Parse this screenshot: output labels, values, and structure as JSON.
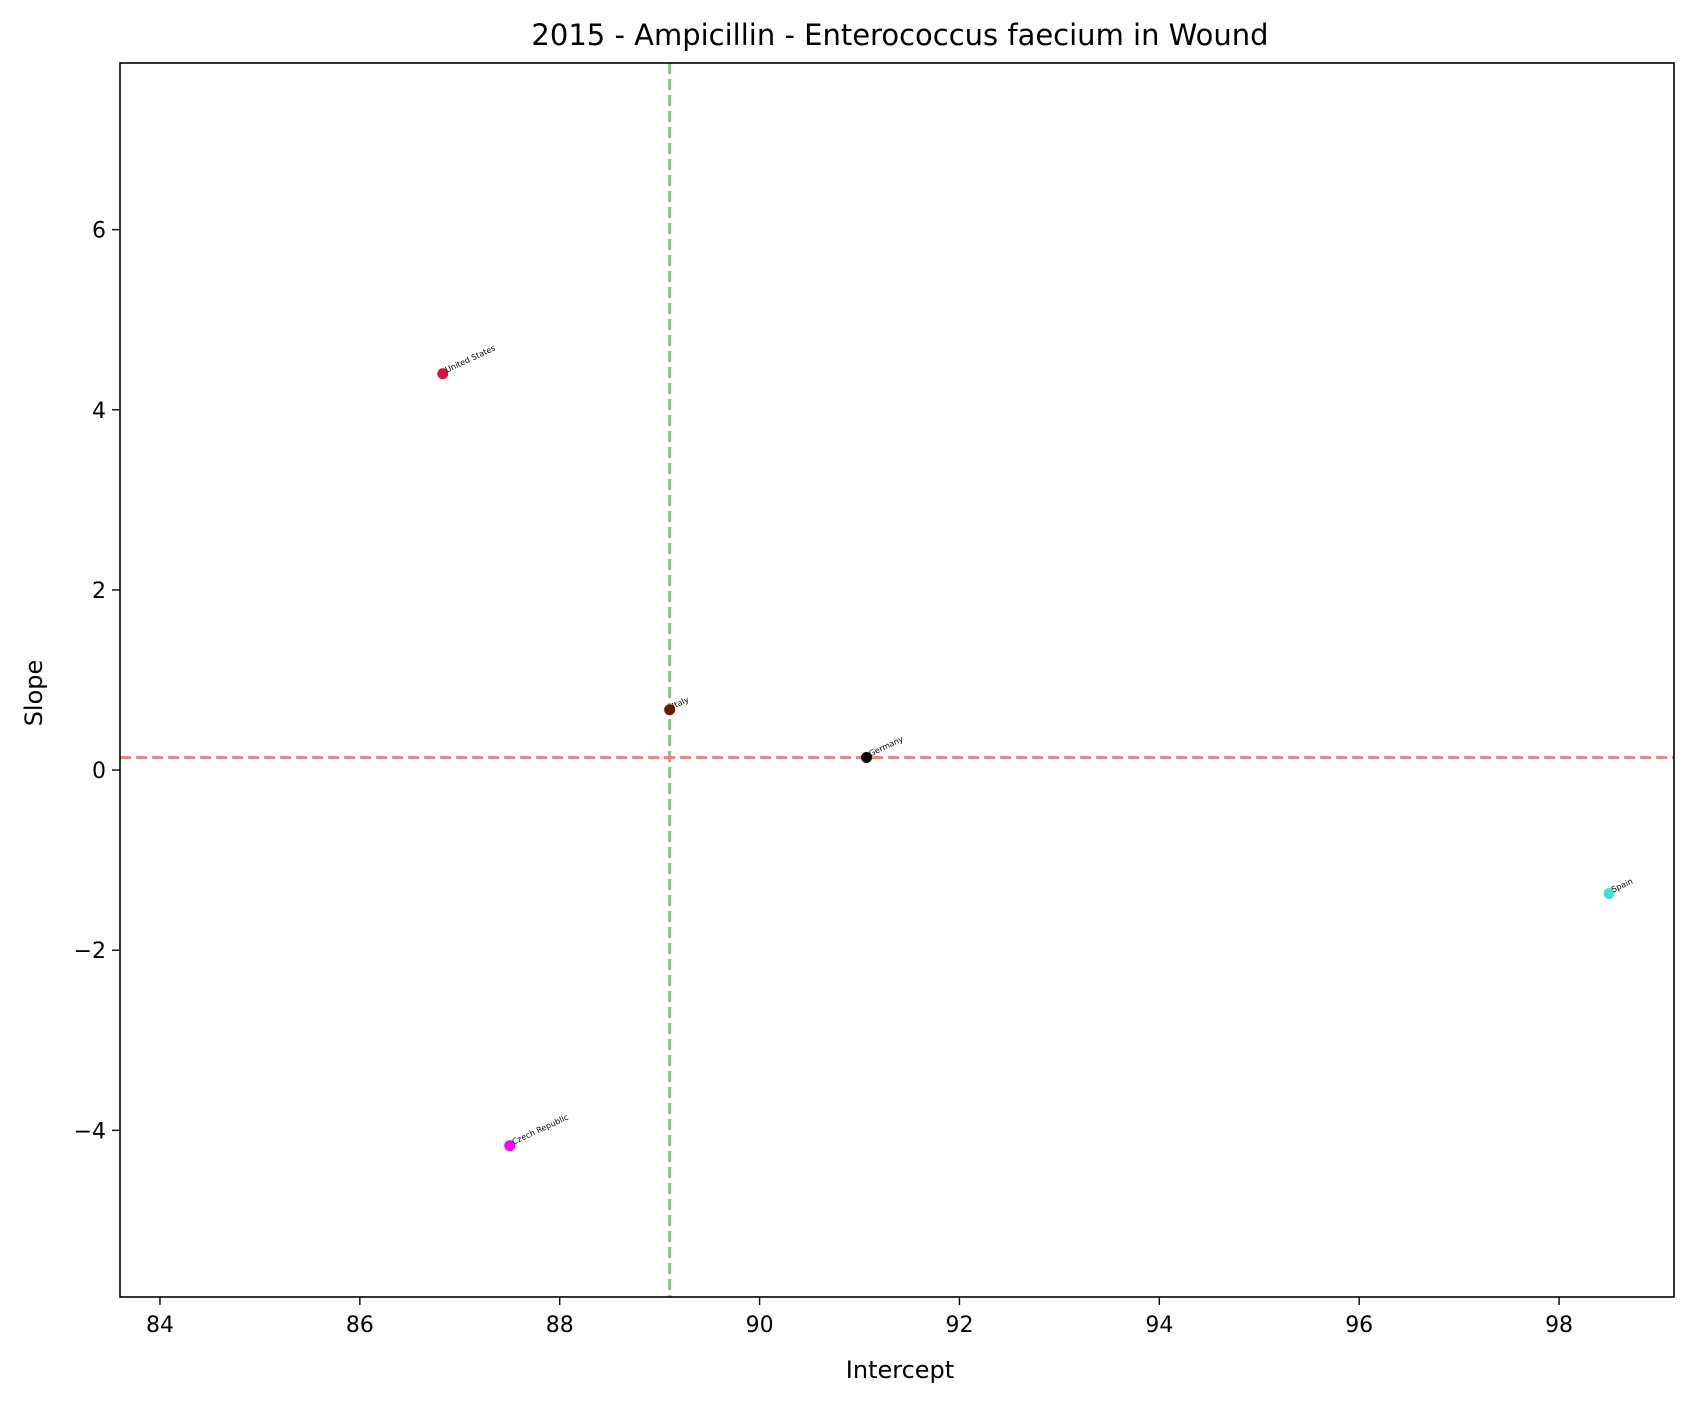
{
  "chart_data": {
    "type": "scatter",
    "title": "2015 - Ampicillin - Enterococcus faecium in Wound",
    "xlabel": "Intercept",
    "ylabel": "Slope",
    "xlim": [
      83.6,
      99.15
    ],
    "ylim": [
      -5.85,
      7.85
    ],
    "x_ticks": [
      84,
      86,
      88,
      90,
      92,
      94,
      96,
      98
    ],
    "y_ticks": [
      -4,
      -2,
      0,
      2,
      4,
      6
    ],
    "x_tick_labels": [
      "84",
      "86",
      "88",
      "90",
      "92",
      "94",
      "96",
      "98"
    ],
    "y_tick_labels": [
      "−4",
      "−2",
      "0",
      "2",
      "4",
      "6"
    ],
    "grid": false,
    "reference_lines": {
      "vertical_x": 89.1,
      "vertical_color": "#7dc97d",
      "horizontal_y": 0.14,
      "horizontal_color": "#f98080"
    },
    "points": [
      {
        "label": "United States",
        "x": 86.83,
        "y": 4.4,
        "color": "#d6143c"
      },
      {
        "label": "Italy",
        "x": 89.1,
        "y": 0.67,
        "color": "#6b1a00"
      },
      {
        "label": "Germany",
        "x": 91.07,
        "y": 0.14,
        "color": "#000000"
      },
      {
        "label": "Spain",
        "x": 98.5,
        "y": -1.37,
        "color": "#40e0d0"
      },
      {
        "label": "Czech Republic",
        "x": 87.5,
        "y": -4.17,
        "color": "#ff00ff"
      }
    ]
  }
}
